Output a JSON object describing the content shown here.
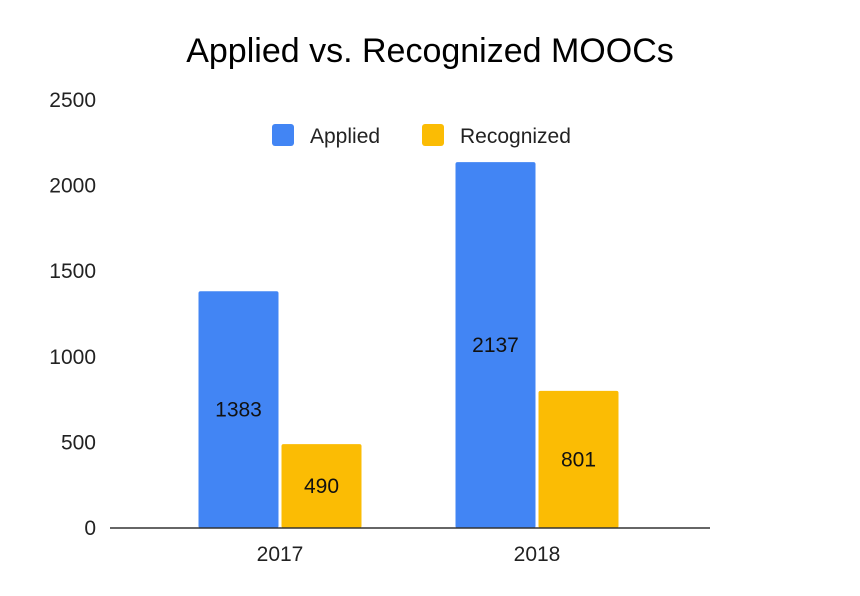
{
  "chart_data": {
    "type": "bar",
    "title": "Applied vs. Recognized MOOCs",
    "xlabel": "",
    "ylabel": "",
    "categories": [
      "2017",
      "2018"
    ],
    "series": [
      {
        "name": "Applied",
        "values": [
          1383,
          2137
        ],
        "color": "#4285f4"
      },
      {
        "name": "Recognized",
        "values": [
          490,
          801
        ],
        "color": "#fbbc04"
      }
    ],
    "ylim": [
      0,
      2500
    ],
    "yticks": [
      "0",
      "500",
      "1000",
      "1500",
      "2000",
      "2500"
    ],
    "grid": false,
    "legend_position": "top",
    "data_labels": true
  }
}
